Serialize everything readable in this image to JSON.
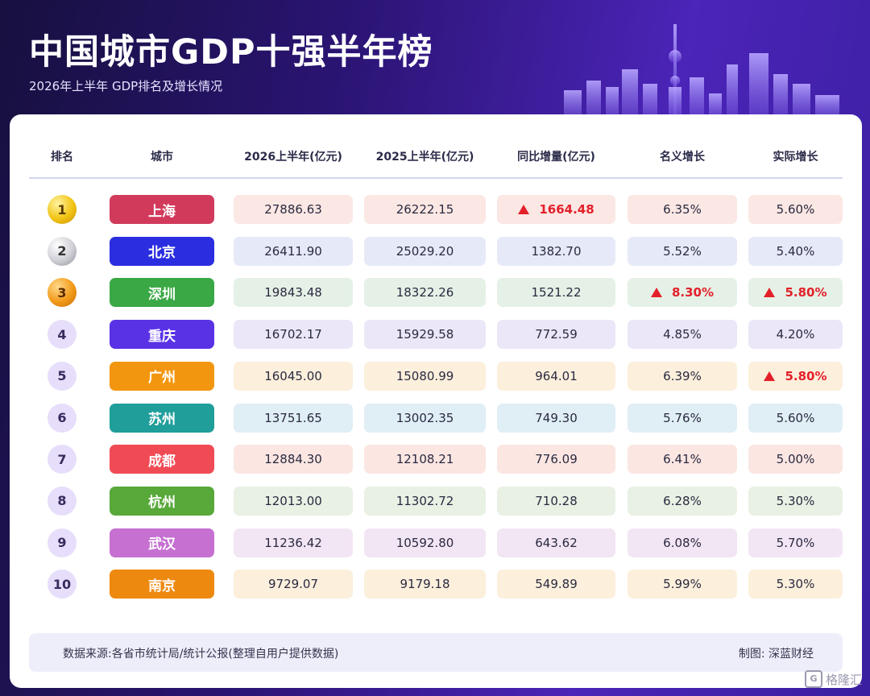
{
  "header": {
    "title": "中国城市GDP十强半年榜",
    "subtitle": "2026年上半年 GDP排名及增长情况"
  },
  "table": {
    "columns": [
      {
        "line1": "排名",
        "line2": ""
      },
      {
        "line1": "城市",
        "line2": ""
      },
      {
        "line1": "2026上半年",
        "line2": "(亿元)"
      },
      {
        "line1": "2025上半年",
        "line2": "(亿元)"
      },
      {
        "line1": "同比增量",
        "line2": "(亿元)"
      },
      {
        "line1": "名义增长",
        "line2": ""
      },
      {
        "line1": "实际增长",
        "line2": ""
      }
    ],
    "rows": [
      {
        "rank": "1",
        "city": "上海",
        "gdp_2026": "27886.63",
        "gdp_2025": "26222.15",
        "increase": "1664.48",
        "nominal": "6.35%",
        "real": "5.60%",
        "city_color": "#d23a5c",
        "tint": "#fbe7e4",
        "badge": "gold",
        "up": [
          "increase"
        ]
      },
      {
        "rank": "2",
        "city": "北京",
        "gdp_2026": "26411.90",
        "gdp_2025": "25029.20",
        "increase": "1382.70",
        "nominal": "5.52%",
        "real": "5.40%",
        "city_color": "#2a2ee0",
        "tint": "#e6eaf8",
        "badge": "silver",
        "up": []
      },
      {
        "rank": "3",
        "city": "深圳",
        "gdp_2026": "19843.48",
        "gdp_2025": "18322.26",
        "increase": "1521.22",
        "nominal": "8.30%",
        "real": "5.80%",
        "city_color": "#3aa845",
        "tint": "#e5f1e6",
        "badge": "bronze",
        "up": [
          "nominal",
          "real"
        ]
      },
      {
        "rank": "4",
        "city": "重庆",
        "gdp_2026": "16702.17",
        "gdp_2025": "15929.58",
        "increase": "772.59",
        "nominal": "4.85%",
        "real": "4.20%",
        "city_color": "#5a32e6",
        "tint": "#ebe7f8",
        "badge": "purple",
        "up": []
      },
      {
        "rank": "5",
        "city": "广州",
        "gdp_2026": "16045.00",
        "gdp_2025": "15080.99",
        "increase": "964.01",
        "nominal": "6.39%",
        "real": "5.80%",
        "city_color": "#f3960f",
        "tint": "#fcefdc",
        "badge": "purple",
        "up": [
          "real"
        ]
      },
      {
        "rank": "6",
        "city": "苏州",
        "gdp_2026": "13751.65",
        "gdp_2025": "13002.35",
        "increase": "749.30",
        "nominal": "5.76%",
        "real": "5.60%",
        "city_color": "#1f9e9a",
        "tint": "#e0eef6",
        "badge": "purple",
        "up": []
      },
      {
        "rank": "7",
        "city": "成都",
        "gdp_2026": "12884.30",
        "gdp_2025": "12108.21",
        "increase": "776.09",
        "nominal": "6.41%",
        "real": "5.00%",
        "city_color": "#f04b55",
        "tint": "#fbe6e2",
        "badge": "purple",
        "up": []
      },
      {
        "rank": "8",
        "city": "杭州",
        "gdp_2026": "12013.00",
        "gdp_2025": "11302.72",
        "increase": "710.28",
        "nominal": "6.28%",
        "real": "5.30%",
        "city_color": "#58a83a",
        "tint": "#e8f1e4",
        "badge": "purple",
        "up": []
      },
      {
        "rank": "9",
        "city": "武汉",
        "gdp_2026": "11236.42",
        "gdp_2025": "10592.80",
        "increase": "643.62",
        "nominal": "6.08%",
        "real": "5.70%",
        "city_color": "#c670d2",
        "tint": "#f3e6f4",
        "badge": "purple",
        "up": []
      },
      {
        "rank": "10",
        "city": "南京",
        "gdp_2026": "9729.07",
        "gdp_2025": "9179.18",
        "increase": "549.89",
        "nominal": "5.99%",
        "real": "5.30%",
        "city_color": "#ee8910",
        "tint": "#fcefdc",
        "badge": "purple",
        "up": []
      }
    ]
  },
  "footer": {
    "source": "数据来源:各省市统计局/统计公报(整理自用户提供数据)",
    "credit": "制图: 深蓝财经"
  },
  "watermark": "格隆汇",
  "icons": {
    "up": "triangle-up-icon",
    "logo": "gelonghui-logo-icon"
  },
  "colors": {
    "accent": "#4b24b8",
    "up": "#e3202a"
  }
}
